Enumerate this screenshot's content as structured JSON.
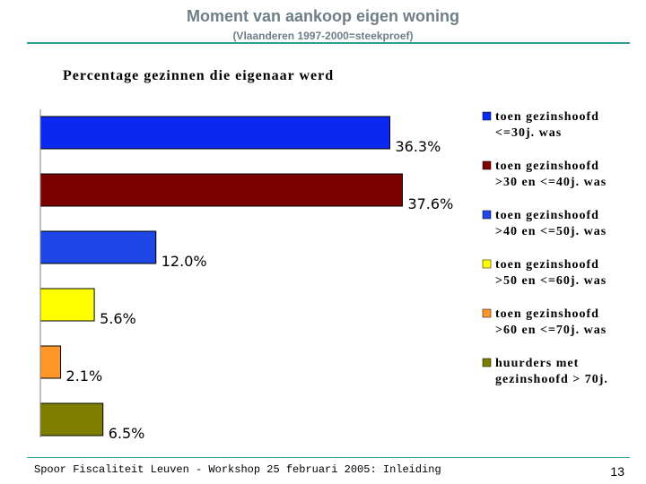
{
  "header": {
    "title": "Moment van aankoop eigen woning",
    "subtitle": "(Vlaanderen 1997-2000=steekproef)"
  },
  "chart_data": {
    "type": "bar",
    "orientation": "horizontal",
    "title": "Percentage gezinnen die eigenaar werd",
    "categories": [
      "toen gezinshoofd <=30j. was",
      "toen gezinshoofd >30 en <=40j. was",
      "toen gezinshoofd >40 en <=50j. was",
      "toen gezinshoofd >50 en <=60j. was",
      "toen gezinshoofd >60 en <=70j. was",
      "huurders met gezinshoofd > 70j."
    ],
    "values": [
      36.3,
      37.6,
      12.0,
      5.6,
      2.1,
      6.5
    ],
    "data_labels": [
      "36.3%",
      "37.6%",
      "12.0%",
      "5.6%",
      "2.1%",
      "6.5%"
    ],
    "colors": [
      "#0a28f0",
      "#7d0000",
      "#1e46e6",
      "#ffff00",
      "#ff9628",
      "#7d7d00"
    ],
    "legend": [
      {
        "line1": "toen gezinshoofd",
        "line2": "<=30j. was"
      },
      {
        "line1": "toen gezinshoofd",
        "line2": ">30 en <=40j. was"
      },
      {
        "line1": "toen gezinshoofd",
        "line2": ">40 en <=50j. was"
      },
      {
        "line1": "toen gezinshoofd",
        "line2": ">50 en <=60j. was"
      },
      {
        "line1": "toen gezinshoofd",
        "line2": ">60 en <=70j. was"
      },
      {
        "line1": "huurders met",
        "line2": "gezinshoofd > 70j."
      }
    ],
    "legend_position": "right",
    "xlim": [
      0,
      40
    ],
    "grid": false
  },
  "footer": {
    "text": "Spoor Fiscaliteit Leuven - Workshop 25 februari 2005: Inleiding",
    "page": "13"
  }
}
